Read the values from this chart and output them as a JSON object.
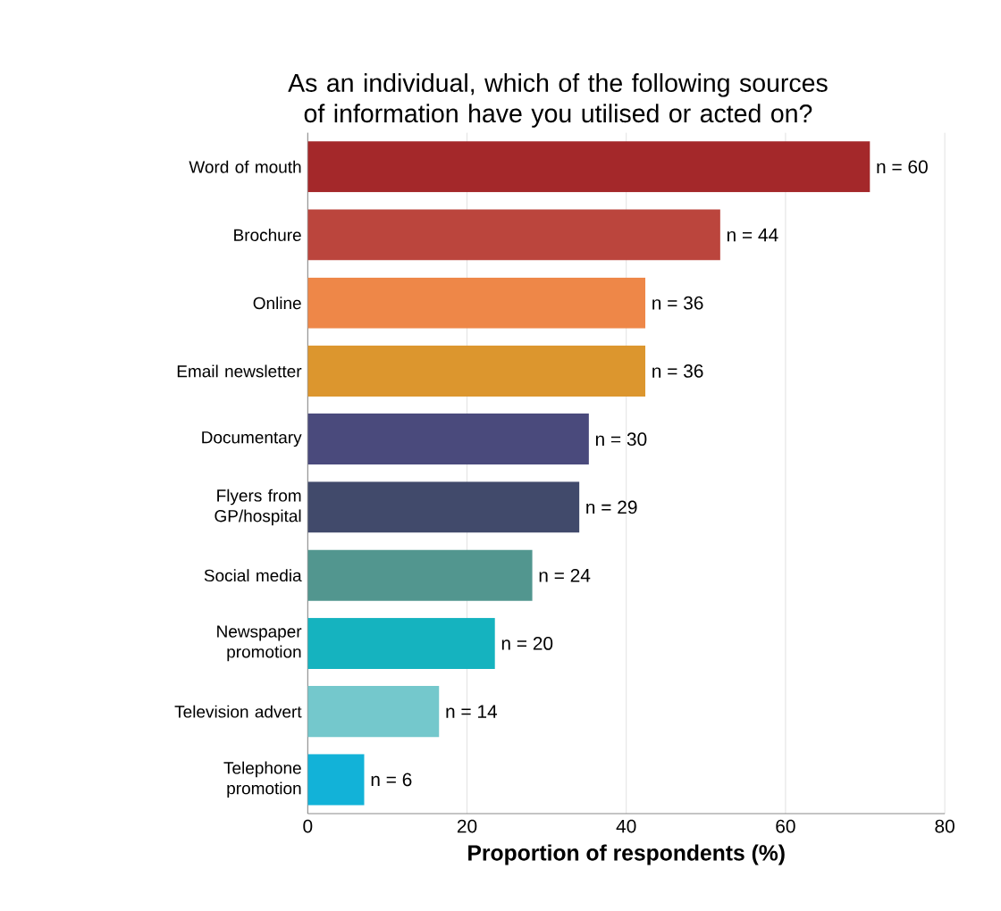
{
  "chart_data": {
    "type": "bar",
    "orientation": "horizontal",
    "title": "As an individual, which of the following sources of information have you utilised or acted on?",
    "xlabel": "Proportion of respondents (%)",
    "categories": [
      "Word of mouth",
      "Brochure",
      "Online",
      "Email newsletter",
      "Documentary",
      "Flyers from GP/hospital",
      "Social media",
      "Newspaper promotion",
      "Television advert",
      "Telephone promotion"
    ],
    "values": [
      70.6,
      51.8,
      42.4,
      42.4,
      35.3,
      34.1,
      28.2,
      23.5,
      16.5,
      7.1
    ],
    "annotations": [
      {
        "text": "n = 60",
        "x": 70.6,
        "y": "Word of mouth"
      },
      {
        "text": "n = 44",
        "x": 51.8,
        "y": "Brochure"
      },
      {
        "text": "n = 36",
        "x": 42.4,
        "y": "Online"
      },
      {
        "text": "n = 36",
        "x": 42.4,
        "y": "Email newsletter"
      },
      {
        "text": "n = 30",
        "x": 35.3,
        "y": "Documentary"
      },
      {
        "text": "n = 29",
        "x": 34.1,
        "y": "Flyers from GP/hospital"
      },
      {
        "text": "n = 24",
        "x": 28.2,
        "y": "Social media"
      },
      {
        "text": "n = 20",
        "x": 23.5,
        "y": "Newspaper promotion"
      },
      {
        "text": "n = 14",
        "x": 16.5,
        "y": "Television advert"
      },
      {
        "text": "n = 6",
        "x": 7.1,
        "y": "Telephone promotion"
      }
    ],
    "colors": [
      "#a4282a",
      "#bb453d",
      "#ee8748",
      "#dc962e",
      "#4a4a7c",
      "#414a6b",
      "#52968f",
      "#15b3bf",
      "#74c8cc",
      "#12b2d8"
    ],
    "xlim": [
      0,
      80
    ],
    "xticks": [
      0,
      20,
      40,
      60,
      80
    ],
    "grid": "x"
  }
}
